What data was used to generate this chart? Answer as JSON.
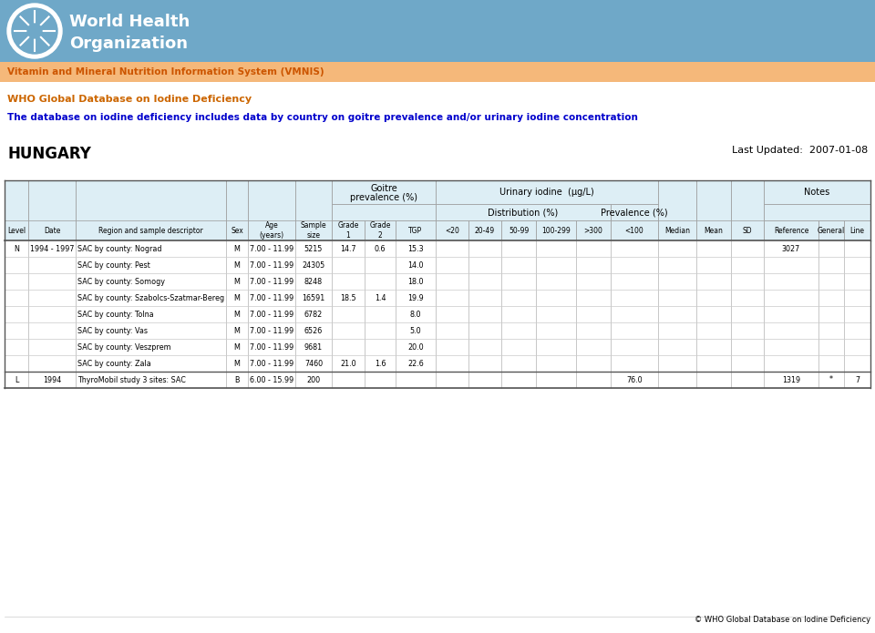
{
  "header_bg_color": "#6fa8c8",
  "vmnis_bar_color": "#f5b87a",
  "vmnis_text": "Vitamin and Mineral Nutrition Information System (VMNIS)",
  "vmnis_text_color": "#cc5500",
  "who_db_text": "WHO Global Database on Iodine Deficiency",
  "who_db_text_color": "#cc6600",
  "subtitle_text": "The database on iodine deficiency includes data by country on goitre prevalence and/or urinary iodine concentration",
  "subtitle_text_color": "#0000cc",
  "country": "HUNGARY",
  "last_updated": "Last Updated:  2007-01-08",
  "copyright": "© WHO Global Database on Iodine Deficiency",
  "rows": [
    [
      "N",
      "1994 - 1997",
      "SAC by county: Nograd",
      "M",
      "7.00 - 11.99",
      "5215",
      "14.7",
      "0.6",
      "15.3",
      "",
      "",
      "",
      "",
      "",
      "",
      "",
      "",
      "",
      "3027",
      "",
      ""
    ],
    [
      "",
      "",
      "SAC by county: Pest",
      "M",
      "7.00 - 11.99",
      "24305",
      "",
      "",
      "14.0",
      "",
      "",
      "",
      "",
      "",
      "",
      "",
      "",
      "",
      "",
      "",
      ""
    ],
    [
      "",
      "",
      "SAC by county: Somogy",
      "M",
      "7.00 - 11.99",
      "8248",
      "",
      "",
      "18.0",
      "",
      "",
      "",
      "",
      "",
      "",
      "",
      "",
      "",
      "",
      "",
      ""
    ],
    [
      "",
      "",
      "SAC by county: Szabolcs-Szatmar-Bereg",
      "M",
      "7.00 - 11.99",
      "16591",
      "18.5",
      "1.4",
      "19.9",
      "",
      "",
      "",
      "",
      "",
      "",
      "",
      "",
      "",
      "",
      "",
      ""
    ],
    [
      "",
      "",
      "SAC by county: Tolna",
      "M",
      "7.00 - 11.99",
      "6782",
      "",
      "",
      "8.0",
      "",
      "",
      "",
      "",
      "",
      "",
      "",
      "",
      "",
      "",
      "",
      ""
    ],
    [
      "",
      "",
      "SAC by county: Vas",
      "M",
      "7.00 - 11.99",
      "6526",
      "",
      "",
      "5.0",
      "",
      "",
      "",
      "",
      "",
      "",
      "",
      "",
      "",
      "",
      "",
      ""
    ],
    [
      "",
      "",
      "SAC by county: Veszprem",
      "M",
      "7.00 - 11.99",
      "9681",
      "",
      "",
      "20.0",
      "",
      "",
      "",
      "",
      "",
      "",
      "",
      "",
      "",
      "",
      "",
      ""
    ],
    [
      "",
      "",
      "SAC by county: Zala",
      "M",
      "7.00 - 11.99",
      "7460",
      "21.0",
      "1.6",
      "22.6",
      "",
      "",
      "",
      "",
      "",
      "",
      "",
      "",
      "",
      "",
      "",
      ""
    ],
    [
      "L",
      "1994",
      "ThyroMobil study 3 sites: SAC",
      "B",
      "6.00 - 15.99",
      "200",
      "",
      "",
      "",
      "",
      "",
      "",
      "",
      "",
      "76.0",
      "",
      "",
      "",
      "1319",
      "*",
      "7"
    ]
  ],
  "bg_color": "#ffffff"
}
